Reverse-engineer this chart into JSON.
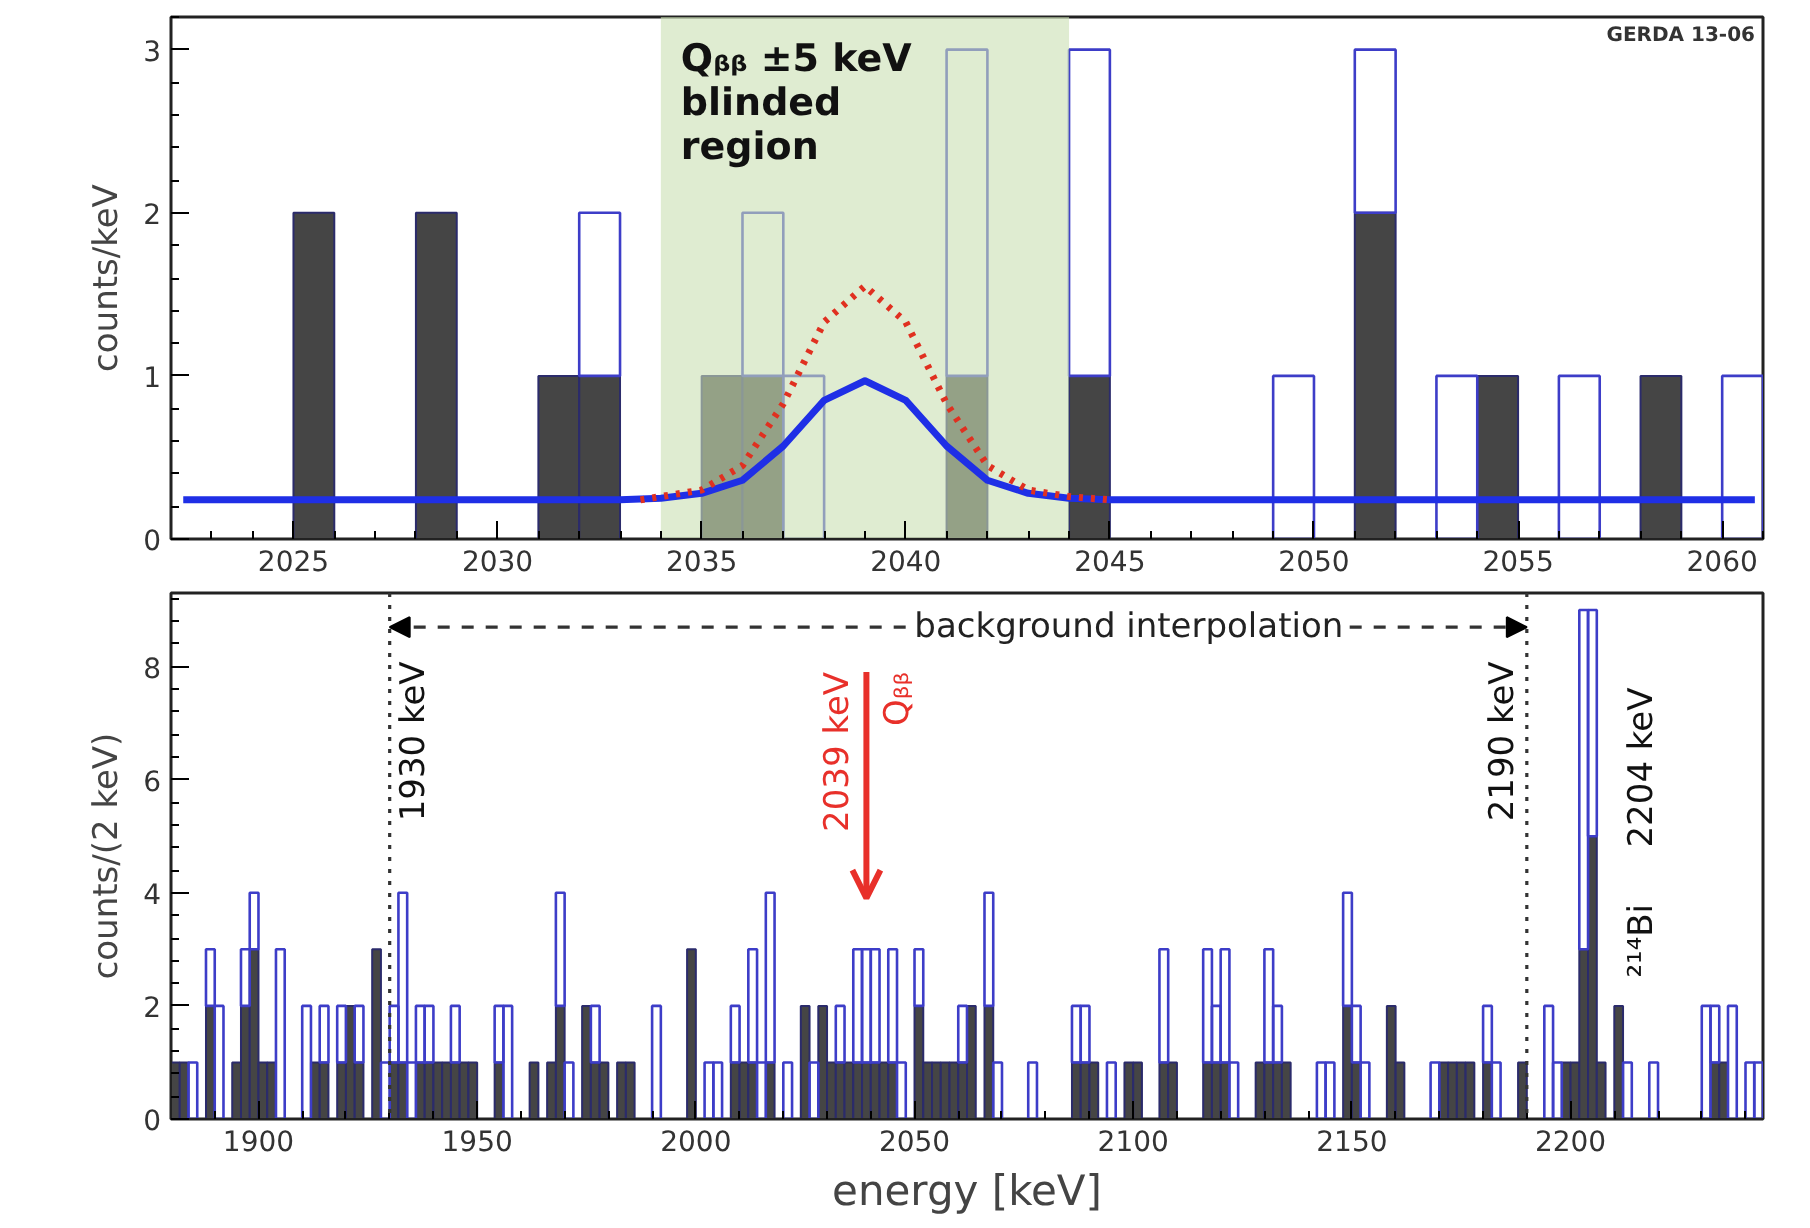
{
  "chart_data": [
    {
      "type": "bar",
      "ylabel": "counts/keV",
      "stacked": true,
      "x": [
        2022.5,
        2023.5,
        2024.5,
        2025.5,
        2026.5,
        2027.5,
        2028.5,
        2029.5,
        2030.5,
        2031.5,
        2032.5,
        2033.5,
        2034.5,
        2035.5,
        2036.5,
        2037.5,
        2038.5,
        2039.5,
        2040.5,
        2041.5,
        2042.5,
        2043.5,
        2044.5,
        2045.5,
        2046.5,
        2047.5,
        2048.5,
        2049.5,
        2050.5,
        2051.5,
        2052.5,
        2053.5,
        2054.5,
        2055.5,
        2056.5,
        2057.5,
        2058.5,
        2059.5,
        2060.5
      ],
      "series": [
        {
          "color": "#454545",
          "values": [
            0,
            0,
            0,
            2,
            0,
            0,
            2,
            0,
            0,
            1,
            1,
            0,
            0,
            1,
            1,
            0,
            0,
            0,
            0,
            1,
            0,
            0,
            1,
            0,
            0,
            0,
            0,
            0,
            0,
            2,
            0,
            0,
            1,
            0,
            0,
            0,
            1,
            0,
            0
          ]
        },
        {
          "color": "#3d3dc8",
          "values": [
            0,
            0,
            0,
            0,
            0,
            0,
            0,
            0,
            0,
            0,
            1,
            0,
            0,
            0,
            1,
            1,
            0,
            0,
            0,
            2,
            0,
            0,
            2,
            0,
            0,
            0,
            0,
            1,
            0,
            1,
            0,
            1,
            0,
            0,
            1,
            0,
            0,
            0,
            1
          ]
        },
        {
          "type": "line",
          "color": "#1f2fe6",
          "x": [
            2022.3,
            2030,
            2033,
            2034,
            2035,
            2036,
            2037,
            2038,
            2039,
            2040,
            2041,
            2042,
            2043,
            2044,
            2045,
            2050,
            2060.8
          ],
          "values": [
            0.24,
            0.24,
            0.24,
            0.25,
            0.28,
            0.36,
            0.57,
            0.85,
            0.97,
            0.85,
            0.57,
            0.36,
            0.28,
            0.25,
            0.24,
            0.24,
            0.24
          ]
        },
        {
          "type": "line",
          "color": "#e03020",
          "line_style": "dotted",
          "x": [
            2033.5,
            2034,
            2035,
            2036,
            2037,
            2038,
            2039,
            2040,
            2041,
            2042,
            2043,
            2044,
            2045
          ],
          "values": [
            0.24,
            0.26,
            0.3,
            0.45,
            0.83,
            1.33,
            1.55,
            1.33,
            0.83,
            0.45,
            0.3,
            0.26,
            0.24
          ]
        }
      ],
      "bands": [
        {
          "axis": "x",
          "from": 2034,
          "to": 2044,
          "label": "Qᵦᵦ ±5 keV\nblinded\nregion",
          "color": "#c9dfb2"
        }
      ],
      "annotations": [
        "GERDA 13-06"
      ],
      "xlim": [
        2022,
        2061
      ],
      "ylim": [
        0,
        3.2
      ],
      "xticks": [
        2025,
        2030,
        2035,
        2040,
        2045,
        2050,
        2055,
        2060
      ],
      "yticks": [
        0,
        1,
        2,
        3
      ],
      "grid": false
    },
    {
      "type": "bar",
      "xlabel": "energy [keV]",
      "ylabel": "counts/(2 keV)",
      "stacked": true,
      "x": [
        1881,
        1883,
        1885,
        1887,
        1889,
        1891,
        1893,
        1895,
        1897,
        1899,
        1901,
        1903,
        1905,
        1907,
        1909,
        1911,
        1913,
        1915,
        1917,
        1919,
        1921,
        1923,
        1925,
        1927,
        1929,
        1931,
        1933,
        1935,
        1937,
        1939,
        1941,
        1943,
        1945,
        1947,
        1949,
        1951,
        1953,
        1955,
        1957,
        1959,
        1961,
        1963,
        1965,
        1967,
        1969,
        1971,
        1973,
        1975,
        1977,
        1979,
        1981,
        1983,
        1985,
        1987,
        1989,
        1991,
        1993,
        1995,
        1997,
        1999,
        2001,
        2003,
        2005,
        2007,
        2009,
        2011,
        2013,
        2015,
        2017,
        2019,
        2021,
        2023,
        2025,
        2027,
        2029,
        2031,
        2033,
        2035,
        2037,
        2039,
        2041,
        2043,
        2045,
        2047,
        2049,
        2051,
        2053,
        2055,
        2057,
        2059,
        2061,
        2063,
        2065,
        2067,
        2069,
        2071,
        2073,
        2075,
        2077,
        2079,
        2081,
        2083,
        2085,
        2087,
        2089,
        2091,
        2093,
        2095,
        2097,
        2099,
        2101,
        2103,
        2105,
        2107,
        2109,
        2111,
        2113,
        2115,
        2117,
        2119,
        2121,
        2123,
        2125,
        2127,
        2129,
        2131,
        2133,
        2135,
        2137,
        2139,
        2141,
        2143,
        2145,
        2147,
        2149,
        2151,
        2153,
        2155,
        2157,
        2159,
        2161,
        2163,
        2165,
        2167,
        2169,
        2171,
        2173,
        2175,
        2177,
        2179,
        2181,
        2183,
        2185,
        2187,
        2189,
        2191,
        2193,
        2195,
        2197,
        2199,
        2201,
        2203,
        2205,
        2207,
        2209,
        2211,
        2213,
        2215,
        2217,
        2219,
        2221,
        2223,
        2225,
        2227,
        2229,
        2231,
        2233,
        2235,
        2237,
        2239,
        2241,
        2243
      ],
      "series": [
        {
          "color": "#454545",
          "values": [
            1,
            1,
            0,
            0,
            2,
            0,
            0,
            1,
            2,
            3,
            1,
            1,
            0,
            0,
            0,
            0,
            1,
            1,
            0,
            1,
            2,
            1,
            0,
            3,
            0,
            1,
            1,
            0,
            1,
            1,
            1,
            1,
            1,
            1,
            1,
            0,
            0,
            1,
            0,
            0,
            0,
            1,
            0,
            1,
            2,
            0,
            0,
            2,
            1,
            1,
            0,
            1,
            1,
            0,
            0,
            0,
            0,
            0,
            0,
            3,
            0,
            0,
            0,
            0,
            1,
            1,
            1,
            0,
            1,
            0,
            0,
            0,
            2,
            0,
            2,
            1,
            1,
            1,
            1,
            1,
            1,
            1,
            1,
            0,
            0,
            2,
            1,
            1,
            1,
            1,
            1,
            2,
            0,
            2,
            0,
            0,
            0,
            0,
            0,
            0,
            0,
            0,
            0,
            1,
            1,
            1,
            0,
            0,
            0,
            1,
            1,
            0,
            0,
            1,
            1,
            0,
            0,
            0,
            1,
            1,
            1,
            0,
            0,
            0,
            1,
            1,
            1,
            1,
            0,
            0,
            0,
            0,
            0,
            0,
            2,
            1,
            0,
            0,
            0,
            2,
            1,
            0,
            0,
            0,
            0,
            1,
            1,
            1,
            1,
            0,
            1,
            0,
            0,
            0,
            1,
            0,
            0,
            0,
            0,
            1,
            1,
            3,
            5,
            1,
            0,
            2,
            0,
            0,
            0,
            0,
            0,
            0,
            0,
            0,
            0,
            0,
            1,
            1,
            0,
            0,
            0,
            0
          ]
        },
        {
          "color": "#3d3dc8",
          "values": [
            0,
            0,
            1,
            0,
            1,
            2,
            0,
            0,
            1,
            1,
            0,
            0,
            3,
            0,
            0,
            2,
            0,
            1,
            0,
            1,
            0,
            1,
            0,
            0,
            1,
            1,
            3,
            1,
            1,
            1,
            0,
            0,
            1,
            0,
            0,
            0,
            0,
            1,
            2,
            0,
            0,
            0,
            0,
            0,
            2,
            1,
            0,
            0,
            1,
            0,
            0,
            0,
            0,
            0,
            0,
            2,
            0,
            0,
            0,
            0,
            0,
            1,
            1,
            0,
            1,
            0,
            2,
            1,
            3,
            0,
            1,
            0,
            0,
            1,
            0,
            0,
            1,
            0,
            2,
            2,
            2,
            0,
            2,
            1,
            0,
            1,
            0,
            0,
            0,
            0,
            1,
            0,
            0,
            2,
            1,
            0,
            0,
            0,
            1,
            0,
            0,
            0,
            0,
            1,
            1,
            0,
            0,
            1,
            0,
            0,
            0,
            0,
            0,
            2,
            0,
            0,
            0,
            0,
            2,
            1,
            2,
            1,
            0,
            0,
            0,
            2,
            1,
            0,
            0,
            0,
            0,
            1,
            1,
            0,
            2,
            1,
            1,
            0,
            0,
            0,
            0,
            0,
            0,
            0,
            1,
            0,
            0,
            0,
            0,
            0,
            1,
            1,
            0,
            0,
            0,
            0,
            0,
            2,
            1,
            0,
            0,
            6,
            4,
            0,
            0,
            0,
            1,
            0,
            0,
            1,
            0,
            0,
            0,
            0,
            0,
            2,
            1,
            0,
            2,
            0,
            1,
            1
          ]
        }
      ],
      "ref_lines": [
        {
          "axis": "x",
          "value": 1930,
          "label": "1930 keV",
          "line_style": "dotted",
          "color": "#333333"
        },
        {
          "axis": "x",
          "value": 2190,
          "label": "2190 keV",
          "line_style": "dotted",
          "color": "#333333"
        },
        {
          "axis": "x",
          "value": 2039,
          "label": "2039 keV\nQᵦᵦ",
          "line_style": "solid",
          "color": "#e8302a"
        }
      ],
      "annotations": [
        "background interpolation",
        {
          "text": "2204 keV",
          "x": 2204,
          "y": 4.8
        },
        {
          "text": "²¹⁴Bi",
          "x": 2204,
          "y": 2.5
        }
      ],
      "xlim": [
        1880,
        2244
      ],
      "ylim": [
        0,
        9.3
      ],
      "xticks": [
        1900,
        1950,
        2000,
        2050,
        2100,
        2150,
        2200
      ],
      "yticks": [
        0,
        2,
        4,
        6,
        8
      ],
      "grid": false
    }
  ]
}
